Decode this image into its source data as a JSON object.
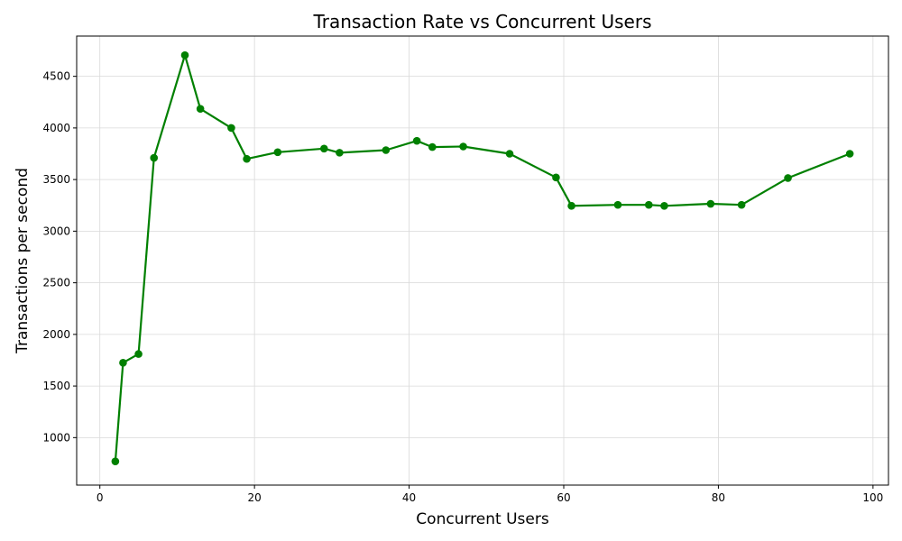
{
  "chart_data": {
    "type": "line",
    "title": "Transaction Rate vs Concurrent Users",
    "xlabel": "Concurrent Users",
    "ylabel": "Transactions per second",
    "xlim": [
      -3,
      102
    ],
    "ylim": [
      540,
      4890
    ],
    "xticks": [
      0,
      20,
      40,
      60,
      80,
      100
    ],
    "yticks": [
      1000,
      1500,
      2000,
      2500,
      3000,
      3500,
      4000,
      4500
    ],
    "grid": true,
    "series": [
      {
        "color": "#008000",
        "marker": "circle",
        "x": [
          2,
          3,
          5,
          7,
          11,
          13,
          17,
          19,
          23,
          29,
          31,
          37,
          41,
          43,
          47,
          53,
          59,
          61,
          67,
          71,
          73,
          79,
          83,
          89,
          97
        ],
        "y": [
          770,
          1725,
          1810,
          3710,
          4705,
          4185,
          4000,
          3700,
          3765,
          3800,
          3760,
          3785,
          3875,
          3815,
          3820,
          3750,
          3520,
          3245,
          3255,
          3255,
          3245,
          3265,
          3255,
          3515,
          3750
        ]
      }
    ]
  }
}
